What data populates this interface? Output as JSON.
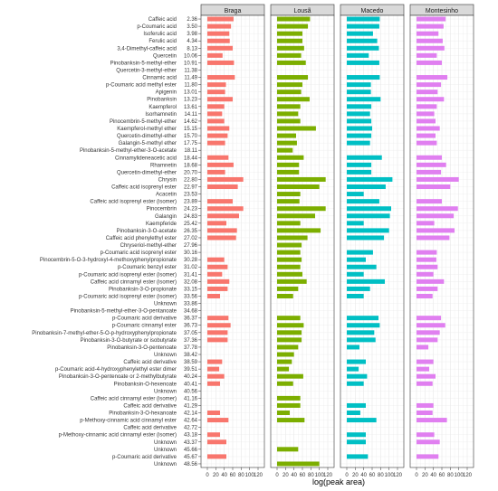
{
  "chart_data": {
    "type": "bar",
    "orientation": "horizontal",
    "xlabel": "log(peak area)",
    "xlim": [
      0,
      120
    ],
    "xticks": [
      0,
      20,
      40,
      60,
      80,
      100,
      120
    ],
    "grid": true,
    "panels": [
      {
        "name": "Braga",
        "color": "#F8766D"
      },
      {
        "name": "Lousã",
        "color": "#7CAE00"
      },
      {
        "name": "Macedo",
        "color": "#00BFC4"
      },
      {
        "name": "Montesinho",
        "color": "#E07FF0"
      }
    ],
    "rows": [
      {
        "label": "Caffeic acid",
        "rt": "2.36",
        "values": [
          62,
          78,
          78,
          69
        ]
      },
      {
        "label": "p-Coumaric acid",
        "rt": "3.50",
        "values": [
          56,
          73,
          77,
          64
        ]
      },
      {
        "label": "Isoferulic acid",
        "rt": "3.98",
        "values": [
          52,
          60,
          62,
          52
        ]
      },
      {
        "label": "Ferulic acid",
        "rt": "4.34",
        "values": [
          53,
          60,
          72,
          62
        ]
      },
      {
        "label": "3,4-Dimethyl-caffeic acid",
        "rt": "8.13",
        "values": [
          60,
          64,
          76,
          66
        ]
      },
      {
        "label": "Quercetin",
        "rt": "10.06",
        "values": [
          36,
          57,
          52,
          48
        ]
      },
      {
        "label": "Pinobanksin-5-methyl-ether",
        "rt": "10.91",
        "values": [
          63,
          68,
          77,
          60
        ]
      },
      {
        "label": "Quercetin-3-methyl-ether",
        "rt": "11.38",
        "values": [
          0,
          0,
          0,
          0
        ]
      },
      {
        "label": "Cinnamic acid",
        "rt": "11.49",
        "values": [
          65,
          73,
          78,
          73
        ]
      },
      {
        "label": "p-Coumaric acid methyl ester",
        "rt": "11.80",
        "values": [
          44,
          60,
          57,
          58
        ]
      },
      {
        "label": "Apigenin",
        "rt": "13.01",
        "values": [
          42,
          57,
          57,
          50
        ]
      },
      {
        "label": "Pinobanksin",
        "rt": "13.23",
        "values": [
          60,
          77,
          80,
          65
        ]
      },
      {
        "label": "Kaempferol",
        "rt": "13.61",
        "values": [
          40,
          55,
          58,
          48
        ]
      },
      {
        "label": "Isorhamnetin",
        "rt": "14.11",
        "values": [
          35,
          50,
          55,
          42
        ]
      },
      {
        "label": "Pinocembrin-5-methyl-ether",
        "rt": "14.62",
        "values": [
          40,
          55,
          58,
          45
        ]
      },
      {
        "label": "Kaempferol-methyl ether",
        "rt": "15.15",
        "values": [
          52,
          92,
          60,
          55
        ]
      },
      {
        "label": "Quercetin-dimethyl-ether",
        "rt": "15.70",
        "values": [
          48,
          45,
          58,
          45
        ]
      },
      {
        "label": "Galangin-5-methyl ether",
        "rt": "17.75",
        "values": [
          42,
          47,
          55,
          48
        ]
      },
      {
        "label": "Pinobanksin-5-methyl-ether-3-O-acetate",
        "rt": "18.11",
        "values": [
          0,
          37,
          0,
          0
        ]
      },
      {
        "label": "Cinnamylideneacetic acid",
        "rt": "18.44",
        "values": [
          50,
          63,
          83,
          60
        ]
      },
      {
        "label": "Rhamnetin",
        "rt": "18.68",
        "values": [
          62,
          52,
          58,
          70
        ]
      },
      {
        "label": "Quercetin-dimethyl-ether",
        "rt": "20.70",
        "values": [
          42,
          52,
          58,
          58
        ]
      },
      {
        "label": "Chrysin",
        "rt": "22.80",
        "values": [
          85,
          115,
          108,
          100
        ]
      },
      {
        "label": "Caffeic acid isoprenyl ester",
        "rt": "22.97",
        "values": [
          72,
          100,
          92,
          80
        ]
      },
      {
        "label": "Acacetin",
        "rt": "23.53",
        "values": [
          0,
          55,
          40,
          0
        ]
      },
      {
        "label": "Caffeic acid isoprenyl ester (isomer)",
        "rt": "23.89",
        "values": [
          60,
          53,
          77,
          60
        ]
      },
      {
        "label": "Pinocembrin",
        "rt": "24.23",
        "values": [
          85,
          115,
          105,
          98
        ]
      },
      {
        "label": "Galangin",
        "rt": "24.83",
        "values": [
          75,
          90,
          102,
          88
        ]
      },
      {
        "label": "Kaempferide",
        "rt": "25.42",
        "values": [
          45,
          55,
          40,
          42
        ]
      },
      {
        "label": "Pinobanksin-3-O-acetate",
        "rt": "26.35",
        "values": [
          70,
          103,
          100,
          90
        ]
      },
      {
        "label": "Caffeic acid phenylethyl ester",
        "rt": "27.02",
        "values": [
          68,
          72,
          88,
          78
        ]
      },
      {
        "label": "Chryseriol-methyl-ether",
        "rt": "27.96",
        "values": [
          0,
          58,
          0,
          0
        ]
      },
      {
        "label": "p-Coumaric acid isoprenyl ester",
        "rt": "30.16",
        "values": [
          0,
          55,
          62,
          48
        ]
      },
      {
        "label": "Pinocembrin-5-O-3-hydroxyl-4-methoxyphenylpropionate",
        "rt": "30.28",
        "values": [
          40,
          58,
          45,
          47
        ]
      },
      {
        "label": "p-Coumaric benzyl ester",
        "rt": "31.02",
        "values": [
          48,
          55,
          70,
          50
        ]
      },
      {
        "label": "p-Coumaric acid isoprenyl ester (isomer)",
        "rt": "31.41",
        "values": [
          35,
          60,
          40,
          40
        ]
      },
      {
        "label": "Caffeic acid cinnamyl ester (isomer)",
        "rt": "32.08",
        "values": [
          52,
          70,
          90,
          65
        ]
      },
      {
        "label": "Pinobanksin-3-O-propionate",
        "rt": "33.15",
        "values": [
          48,
          50,
          55,
          50
        ]
      },
      {
        "label": "p-Coumaric acid isoprenyl ester (isomer)",
        "rt": "33.56",
        "values": [
          30,
          38,
          40,
          38
        ]
      },
      {
        "label": "Unknown",
        "rt": "33.86",
        "values": [
          0,
          0,
          0,
          0
        ]
      },
      {
        "label": "Pinobanksin-5-methyl-ether-3-O-pentanoate",
        "rt": "34.68",
        "values": [
          0,
          0,
          0,
          0
        ]
      },
      {
        "label": "p-Coumaric acid derivative",
        "rt": "36.37",
        "values": [
          50,
          55,
          75,
          58
        ]
      },
      {
        "label": "p-Coumaric cinnamyl ester",
        "rt": "36.73",
        "values": [
          55,
          63,
          78,
          68
        ]
      },
      {
        "label": "Pinobanksin-7-methyl-ether-5-O-p-hydroxyphenylpropionate",
        "rt": "37.05",
        "values": [
          48,
          58,
          65,
          55
        ]
      },
      {
        "label": "Pinobanksin-3-O-butyrate or isobutyrate",
        "rt": "37.36",
        "values": [
          48,
          58,
          68,
          50
        ]
      },
      {
        "label": "Pinobanksin-3-O-pentenoate",
        "rt": "37.78",
        "values": [
          0,
          50,
          30,
          28
        ]
      },
      {
        "label": "Unknown",
        "rt": "38.42",
        "values": [
          0,
          40,
          0,
          0
        ]
      },
      {
        "label": "Caffeic acid derivative",
        "rt": "38.59",
        "values": [
          35,
          35,
          45,
          40
        ]
      },
      {
        "label": "p-Coumaric acid-4-hydroxyphenylethyl ester dimer",
        "rt": "39.51",
        "values": [
          28,
          28,
          28,
          30
        ]
      },
      {
        "label": "Pinobanksin-3-O-pentenoate or 2-methylbutyrate",
        "rt": "40.24",
        "values": [
          40,
          62,
          48,
          45
        ]
      },
      {
        "label": "Pinobanksin-O-hexenoate",
        "rt": "40.41",
        "values": [
          30,
          38,
          40,
          38
        ]
      },
      {
        "label": "Unknown",
        "rt": "40.56",
        "values": [
          0,
          0,
          0,
          0
        ]
      },
      {
        "label": "Caffeic acid cinnamyl ester (isomer)",
        "rt": "41.16",
        "values": [
          0,
          55,
          0,
          0
        ]
      },
      {
        "label": "Caffeic acid derivative",
        "rt": "41.29",
        "values": [
          0,
          55,
          45,
          40
        ]
      },
      {
        "label": "Pinobanksin-3-O-hexanoate",
        "rt": "42.14",
        "values": [
          30,
          30,
          32,
          38
        ]
      },
      {
        "label": "p-Methoxy-cinnamic acid cinnamyl ester",
        "rt": "42.64",
        "values": [
          50,
          65,
          70,
          72
        ]
      },
      {
        "label": "Caffeic acid derivative",
        "rt": "42.72",
        "values": [
          0,
          0,
          0,
          0
        ]
      },
      {
        "label": "p-Methoxy-cinnamic acid cinnamyl ester (isomer)",
        "rt": "43.18",
        "values": [
          30,
          0,
          45,
          42
        ]
      },
      {
        "label": "Unknown",
        "rt": "43.37",
        "values": [
          45,
          0,
          45,
          55
        ]
      },
      {
        "label": "Unknown",
        "rt": "45.66",
        "values": [
          0,
          50,
          0,
          0
        ]
      },
      {
        "label": "p-Coumaric acid derivative",
        "rt": "45.67",
        "values": [
          45,
          0,
          50,
          52
        ]
      },
      {
        "label": "Unknown",
        "rt": "48.56",
        "values": [
          0,
          100,
          0,
          0
        ]
      }
    ]
  }
}
